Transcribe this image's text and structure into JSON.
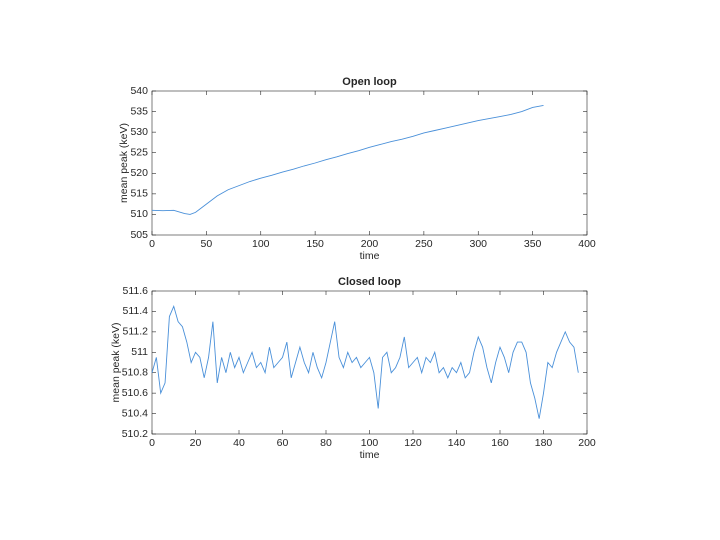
{
  "chart_data": [
    {
      "type": "line",
      "title": "Open loop",
      "xlabel": "time",
      "ylabel": "mean peak (keV)",
      "color": "#4a90d9",
      "x": [
        0,
        10,
        20,
        30,
        35,
        40,
        50,
        60,
        70,
        80,
        90,
        100,
        110,
        120,
        130,
        140,
        150,
        160,
        170,
        180,
        190,
        200,
        210,
        220,
        230,
        240,
        250,
        260,
        270,
        280,
        290,
        300,
        310,
        320,
        330,
        340,
        350,
        360
      ],
      "values": [
        511,
        510.9,
        511,
        510.2,
        510,
        510.5,
        512.5,
        514.5,
        516,
        517,
        518,
        518.8,
        519.5,
        520.3,
        521,
        521.8,
        522.5,
        523.3,
        524,
        524.8,
        525.5,
        526.3,
        527,
        527.7,
        528.3,
        529,
        529.8,
        530.4,
        531,
        531.6,
        532.2,
        532.8,
        533.3,
        533.8,
        534.3,
        535,
        536,
        536.5
      ],
      "xlim": [
        0,
        400
      ],
      "xticks": [
        0,
        50,
        100,
        150,
        200,
        250,
        300,
        350,
        400
      ],
      "ylim": [
        505,
        540
      ],
      "yticks": [
        505,
        510,
        515,
        520,
        525,
        530,
        535,
        540
      ]
    },
    {
      "type": "line",
      "title": "Closed loop",
      "xlabel": "time",
      "ylabel": "mean peak (keV)",
      "color": "#4a90d9",
      "x": [
        0,
        2,
        4,
        6,
        8,
        10,
        12,
        14,
        16,
        18,
        20,
        22,
        24,
        26,
        28,
        30,
        32,
        34,
        36,
        38,
        40,
        42,
        44,
        46,
        48,
        50,
        52,
        54,
        56,
        58,
        60,
        62,
        64,
        66,
        68,
        70,
        72,
        74,
        76,
        78,
        80,
        82,
        84,
        86,
        88,
        90,
        92,
        94,
        96,
        98,
        100,
        102,
        104,
        106,
        108,
        110,
        112,
        114,
        116,
        118,
        120,
        122,
        124,
        126,
        128,
        130,
        132,
        134,
        136,
        138,
        140,
        142,
        144,
        146,
        148,
        150,
        152,
        154,
        156,
        158,
        160,
        162,
        164,
        166,
        168,
        170,
        172,
        174,
        176,
        178,
        180,
        182,
        184,
        186,
        188,
        190,
        192,
        194,
        196
      ],
      "values": [
        510.8,
        510.95,
        510.6,
        510.7,
        511.35,
        511.45,
        511.3,
        511.25,
        511.1,
        510.9,
        511.0,
        510.95,
        510.75,
        510.95,
        511.3,
        510.7,
        510.95,
        510.8,
        511.0,
        510.85,
        510.95,
        510.8,
        510.9,
        511.0,
        510.85,
        510.9,
        510.8,
        511.05,
        510.85,
        510.9,
        510.95,
        511.1,
        510.75,
        510.9,
        511.05,
        510.9,
        510.8,
        511.0,
        510.85,
        510.75,
        510.9,
        511.1,
        511.3,
        510.95,
        510.85,
        511.0,
        510.9,
        510.95,
        510.85,
        510.9,
        510.95,
        510.8,
        510.45,
        510.95,
        511.0,
        510.8,
        510.85,
        510.95,
        511.15,
        510.85,
        510.9,
        510.95,
        510.8,
        510.95,
        510.9,
        511.0,
        510.8,
        510.85,
        510.75,
        510.85,
        510.8,
        510.9,
        510.75,
        510.8,
        511.0,
        511.15,
        511.05,
        510.85,
        510.7,
        510.9,
        511.05,
        510.95,
        510.8,
        511.0,
        511.1,
        511.1,
        511.0,
        510.7,
        510.55,
        510.35,
        510.6,
        510.9,
        510.85,
        511.0,
        511.1,
        511.2,
        511.1,
        511.05,
        510.8
      ],
      "xlim": [
        0,
        200
      ],
      "xticks": [
        0,
        20,
        40,
        60,
        80,
        100,
        120,
        140,
        160,
        180,
        200
      ],
      "ylim": [
        510.2,
        511.6
      ],
      "yticks": [
        510.2,
        510.4,
        510.6,
        510.8,
        511,
        511.2,
        511.4,
        511.6
      ]
    }
  ]
}
